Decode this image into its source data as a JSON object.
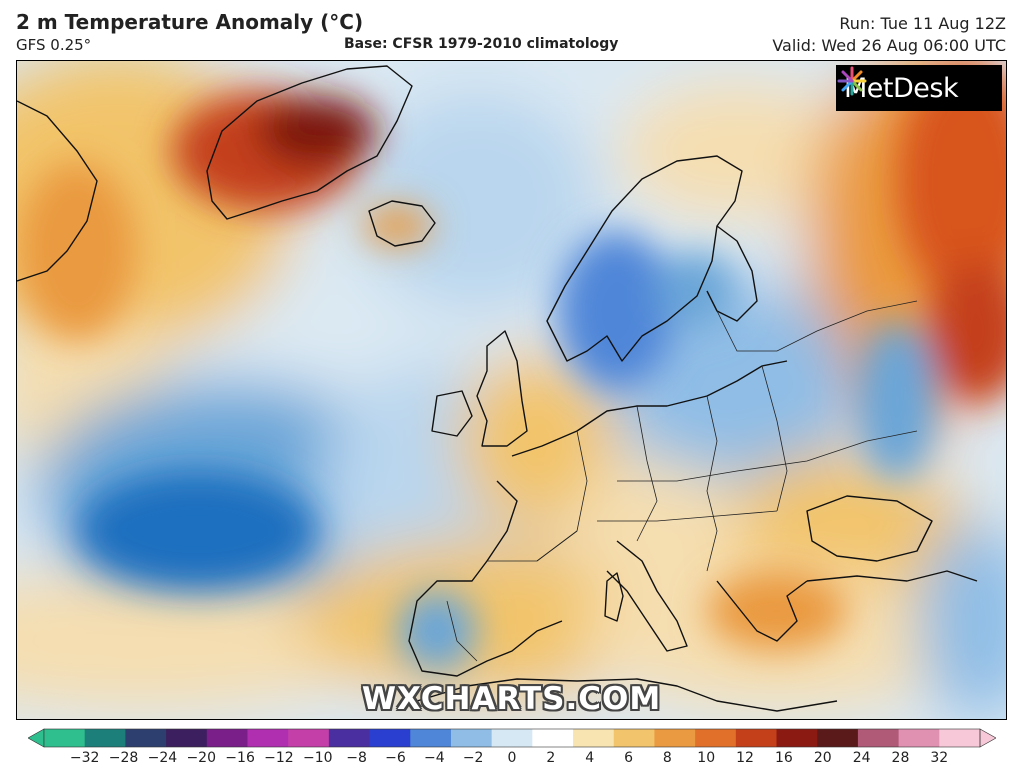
{
  "header": {
    "title": "2 m Temperature Anomaly (°C)",
    "model": "GFS 0.25°",
    "base": "Base: CFSR 1979-2010 climatology",
    "run": "Run: Tue 11 Aug 12Z",
    "valid": "Valid: Wed 26 Aug 06:00 UTC"
  },
  "logo": {
    "text": "MetDesk",
    "icon": "metdesk-burst-icon"
  },
  "watermark": "WXCHARTS.COM",
  "colors": {
    "ocean_neutral": "#d9e8f2",
    "cold_strong": "#1f6fbf",
    "cold": "#6aa6d8",
    "cool": "#b9d6ee",
    "warm_light": "#f5deb0",
    "warm": "#f2c46b",
    "warmer": "#ea9a40",
    "hot": "#d8541c",
    "very_hot": "#7a1410",
    "coast": "#111111"
  },
  "legend": {
    "labels": [
      "−32",
      "−28",
      "−24",
      "−20",
      "−16",
      "−12",
      "−10",
      "−8",
      "−6",
      "−4",
      "−2",
      "0",
      "2",
      "4",
      "6",
      "8",
      "10",
      "12",
      "16",
      "20",
      "24",
      "28",
      "32"
    ],
    "stops": [
      "#2fbf8f",
      "#1c7f7a",
      "#2c3f6e",
      "#3c1f5e",
      "#7a1f8a",
      "#b02fb0",
      "#c43fa8",
      "#4a2fa0",
      "#2a3fd0",
      "#4f86d8",
      "#8fbde6",
      "#d7e8f5",
      "#ffffff",
      "#f7e4b0",
      "#f2c46b",
      "#ea9a40",
      "#e0702a",
      "#c4401a",
      "#8a1a12",
      "#5a1a1a",
      "#b05a78",
      "#e090b0",
      "#f7c8d8"
    ]
  }
}
